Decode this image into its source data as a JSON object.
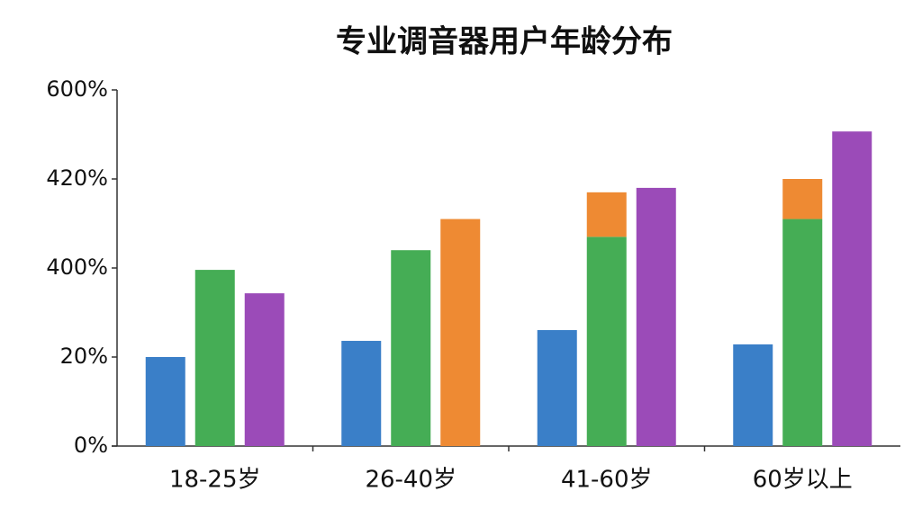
{
  "chart_data": {
    "type": "bar",
    "title": "专业调音器用户年龄分布",
    "categories": [
      "18-25岁",
      "26-40岁",
      "41-60岁",
      "60岁以上"
    ],
    "series": [
      {
        "color": "#3a7fc8",
        "values": [
          20,
          89,
          135,
          74
        ]
      },
      {
        "color": "#45ad55",
        "values": [
          392,
          404,
          407,
          411
        ]
      },
      {
        "color": "#ee8a33",
        "values": [
          null,
          null,
          10,
          9
        ],
        "stack": true
      },
      {
        "colors": [
          "#9b4bb8",
          "#ee8a33",
          "#9b4bb8",
          "#9b4bb8"
        ],
        "values": [
          292,
          411,
          418,
          516
        ]
      }
    ],
    "ylim": [
      0,
      600
    ],
    "yticks": [
      {
        "value": 0,
        "label": "0%"
      },
      {
        "value": 20,
        "label": "20%"
      },
      {
        "value": 400,
        "label": "400%"
      },
      {
        "value": 420,
        "label": "420%"
      },
      {
        "value": 600,
        "label": "600%"
      }
    ],
    "grid": false
  }
}
